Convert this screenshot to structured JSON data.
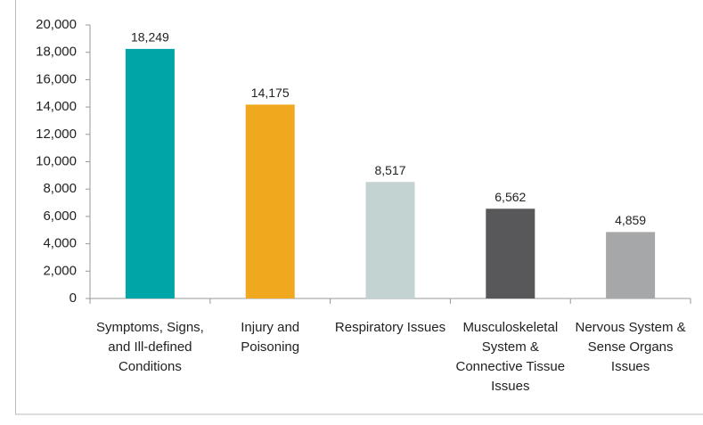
{
  "chart_data": {
    "type": "bar",
    "categories": [
      "Symptoms, Signs, and Ill-defined Conditions",
      "Injury and Poisoning",
      "Respiratory Issues",
      "Musculoskeletal System & Connective Tissue Issues",
      "Nervous System & Sense Organs Issues"
    ],
    "values": [
      18249,
      14175,
      8517,
      6562,
      4859
    ],
    "value_labels": [
      "18,249",
      "14,175",
      "8,517",
      "6,562",
      "4,859"
    ],
    "colors": [
      "#00a5a8",
      "#f0a81e",
      "#c3d3d2",
      "#58585a",
      "#a6a7a9"
    ],
    "ylim": [
      0,
      20000
    ],
    "yticks": [
      0,
      {
        "value": 2000,
        "label": "2,000"
      },
      {
        "value": 4000,
        "label": "4,000"
      },
      {
        "value": 6000,
        "label": "6,000"
      },
      {
        "value": 8000,
        "label": "8,000"
      },
      {
        "value": 10000,
        "label": "10,000"
      },
      {
        "value": 12000,
        "label": "12,000"
      },
      {
        "value": 14000,
        "label": "14,000"
      },
      {
        "value": 16000,
        "label": "16,000"
      },
      {
        "value": 18000,
        "label": "18,000"
      },
      {
        "value": 20000,
        "label": "20,000"
      }
    ],
    "grid": false
  }
}
